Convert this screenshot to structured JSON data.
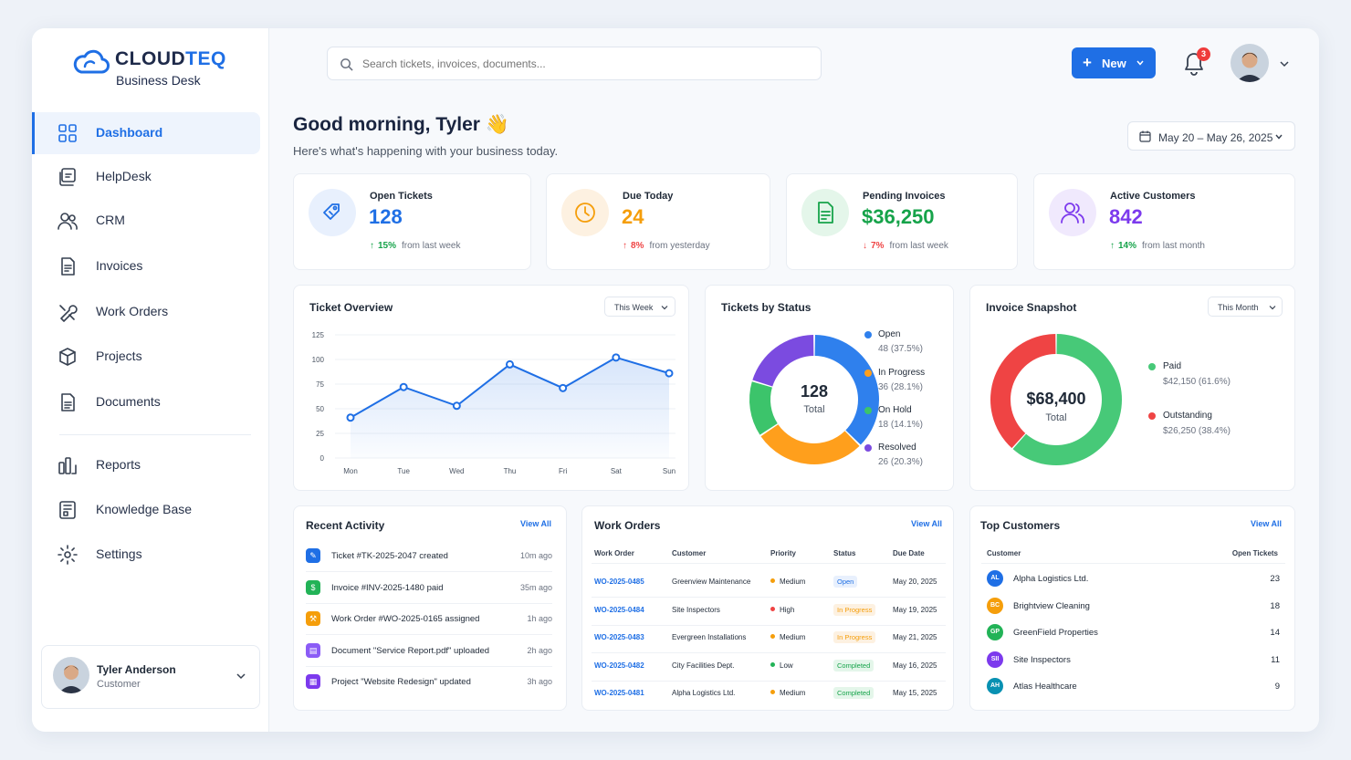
{
  "brand": {
    "name_part1": "CLOUD",
    "name_part2": "TEQ",
    "subtitle": "Business Desk"
  },
  "sidebar": {
    "items": [
      {
        "label": "Dashboard",
        "icon": "grid-icon",
        "active": true
      },
      {
        "label": "HelpDesk",
        "icon": "helpdesk-icon"
      },
      {
        "label": "CRM",
        "icon": "users-icon"
      },
      {
        "label": "Invoices",
        "icon": "invoice-icon"
      },
      {
        "label": "Work Orders",
        "icon": "tools-icon"
      },
      {
        "label": "Projects",
        "icon": "box-icon"
      },
      {
        "label": "Documents",
        "icon": "document-icon"
      },
      {
        "label": "Reports",
        "icon": "bar-chart-icon"
      },
      {
        "label": "Knowledge Base",
        "icon": "book-icon"
      },
      {
        "label": "Settings",
        "icon": "gear-icon"
      }
    ],
    "user": {
      "name": "Tyler Anderson",
      "role": "Customer"
    }
  },
  "topbar": {
    "search_placeholder": "Search tickets, invoices, documents...",
    "new_label": "New",
    "notification_count": "3"
  },
  "header": {
    "greeting": "Good morning, Tyler 👋",
    "subtitle": "Here's what's happening with your business today.",
    "date_range": "May 20 – May 26, 2025"
  },
  "kpis": [
    {
      "label": "Open Tickets",
      "value": "128",
      "change": "15%",
      "direction": "up",
      "footnote": "from last week",
      "color": "#1f6fe5",
      "bg": "#e8f0fd"
    },
    {
      "label": "Due Today",
      "value": "24",
      "change": "8%",
      "direction": "up",
      "footnote": "from yesterday",
      "color": "#f59e0b",
      "bg": "#fdf1e1"
    },
    {
      "label": "Pending Invoices",
      "value": "$36,250",
      "change": "7%",
      "direction": "down",
      "footnote": "from last week",
      "color": "#16a34a",
      "bg": "#e4f6ea"
    },
    {
      "label": "Active Customers",
      "value": "842",
      "change": "14%",
      "direction": "up",
      "footnote": "from last month",
      "color": "#7c3aed",
      "bg": "#f0e9fd"
    }
  ],
  "ticket_overview": {
    "title": "Ticket Overview",
    "period": "This Week"
  },
  "tickets_by_status": {
    "title": "Tickets by Status",
    "total": "128",
    "total_label": "Total"
  },
  "invoice_snapshot": {
    "title": "Invoice Snapshot",
    "period": "This Month",
    "total": "$68,400",
    "total_label": "Total"
  },
  "chart_data": [
    {
      "type": "line",
      "x": [
        "Mon",
        "Tue",
        "Wed",
        "Thu",
        "Fri",
        "Sat",
        "Sun"
      ],
      "series": [
        {
          "values": [
            41,
            72,
            53,
            95,
            71,
            102,
            86
          ]
        }
      ],
      "yticks": [
        0,
        25,
        50,
        75,
        100,
        125
      ],
      "ylim": [
        0,
        125
      ],
      "color": "#1f6fe5"
    },
    {
      "type": "pie",
      "categories": [
        "Open",
        "In Progress",
        "On Hold",
        "Resolved"
      ],
      "values": [
        48,
        36,
        18,
        26
      ],
      "labels": [
        "48 (37.5%)",
        "36 (28.1%)",
        "18 (14.1%)",
        "26 (20.3%)"
      ],
      "colors": [
        "#2f80ed",
        "#ff9f1c",
        "#3cc46b",
        "#7b4be0"
      ]
    },
    {
      "type": "pie",
      "categories": [
        "Paid",
        "Outstanding"
      ],
      "values": [
        42150,
        26250
      ],
      "labels": [
        "$42,150 (61.6%)",
        "$26,250 (38.4%)"
      ],
      "colors": [
        "#47c978",
        "#ef4444"
      ]
    }
  ],
  "recent_activity": {
    "title": "Recent Activity",
    "view_all": "View All",
    "items": [
      {
        "text": "Ticket #TK-2025-2047 created",
        "time": "10m ago",
        "color": "#1f6fe5"
      },
      {
        "text": "Invoice #INV-2025-1480 paid",
        "time": "35m ago",
        "color": "#22b357"
      },
      {
        "text": "Work Order #WO-2025-0165 assigned",
        "time": "1h ago",
        "color": "#f59e0b"
      },
      {
        "text": "Document \"Service Report.pdf\" uploaded",
        "time": "2h ago",
        "color": "#8b5cf6"
      },
      {
        "text": "Project \"Website Redesign\" updated",
        "time": "3h ago",
        "color": "#7c3aed"
      }
    ]
  },
  "work_orders": {
    "title": "Work Orders",
    "view_all": "View All",
    "columns": [
      "Work Order",
      "Customer",
      "Priority",
      "Status",
      "Due Date"
    ],
    "rows": [
      {
        "id": "WO-2025-0485",
        "customer": "Greenview Maintenance",
        "priority": "Medium",
        "priority_color": "#f59e0b",
        "status": "Open",
        "status_color": "#1f6fe5",
        "status_bg": "#e8f0fd",
        "due": "May 20, 2025"
      },
      {
        "id": "WO-2025-0484",
        "customer": "Site Inspectors",
        "priority": "High",
        "priority_color": "#ef4444",
        "status": "In Progress",
        "status_color": "#f59e0b",
        "status_bg": "#fdf1e1",
        "due": "May 19, 2025"
      },
      {
        "id": "WO-2025-0483",
        "customer": "Evergreen Installations",
        "priority": "Medium",
        "priority_color": "#f59e0b",
        "status": "In Progress",
        "status_color": "#f59e0b",
        "status_bg": "#fdf1e1",
        "due": "May 21, 2025"
      },
      {
        "id": "WO-2025-0482",
        "customer": "City Facilities Dept.",
        "priority": "Low",
        "priority_color": "#22b357",
        "status": "Completed",
        "status_color": "#16a34a",
        "status_bg": "#e4f6ea",
        "due": "May 16, 2025"
      },
      {
        "id": "WO-2025-0481",
        "customer": "Alpha Logistics Ltd.",
        "priority": "Medium",
        "priority_color": "#f59e0b",
        "status": "Completed",
        "status_color": "#16a34a",
        "status_bg": "#e4f6ea",
        "due": "May 15, 2025"
      }
    ]
  },
  "top_customers": {
    "title": "Top Customers",
    "view_all": "View All",
    "col_customer": "Customer",
    "col_tickets": "Open Tickets",
    "rows": [
      {
        "initials": "AL",
        "name": "Alpha Logistics Ltd.",
        "count": "23",
        "color": "#1f6fe5"
      },
      {
        "initials": "BC",
        "name": "Brightview Cleaning",
        "count": "18",
        "color": "#f59e0b"
      },
      {
        "initials": "GP",
        "name": "GreenField Properties",
        "count": "14",
        "color": "#22b357"
      },
      {
        "initials": "SII",
        "name": "Site Inspectors",
        "count": "11",
        "color": "#7c3aed"
      },
      {
        "initials": "AH",
        "name": "Atlas Healthcare",
        "count": "9",
        "color": "#0891b2"
      }
    ]
  }
}
